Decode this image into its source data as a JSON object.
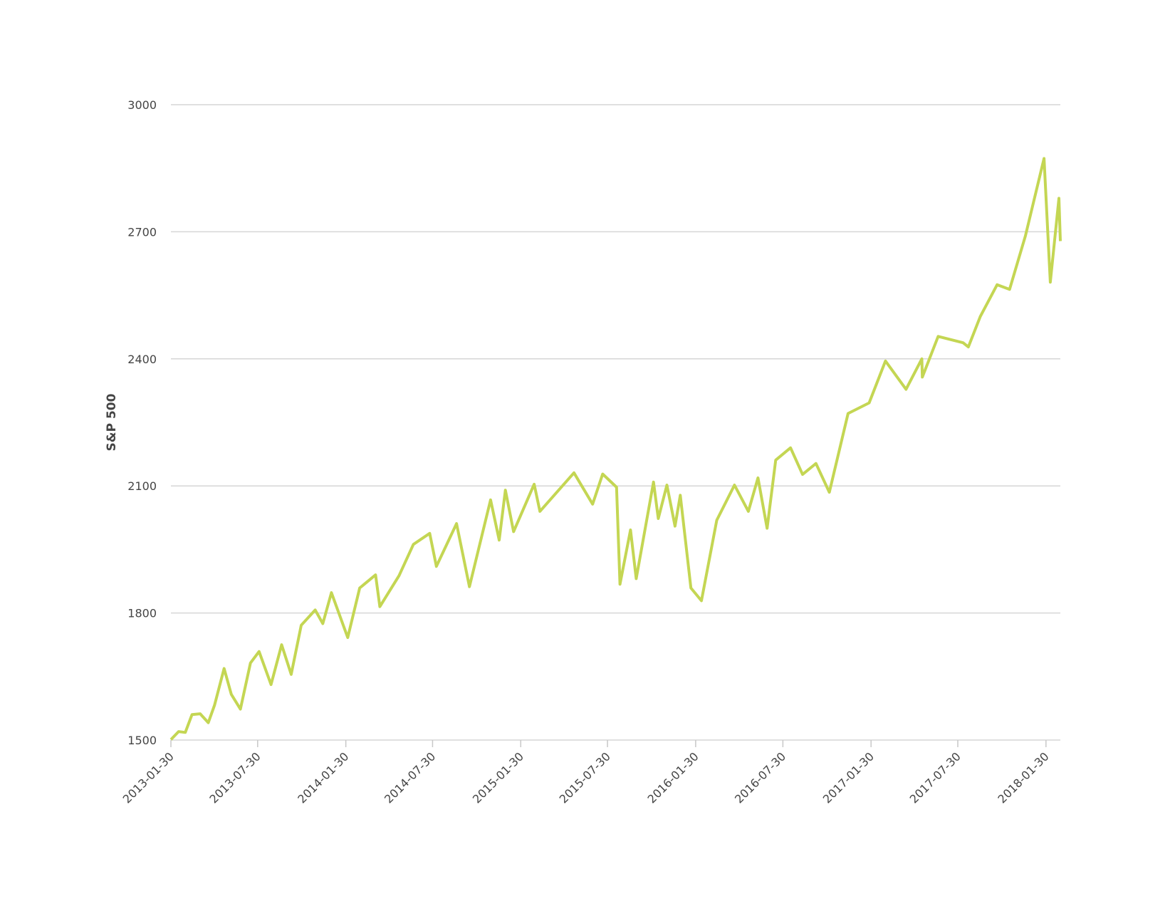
{
  "chart_data": {
    "type": "line",
    "ylabel": "S&P 500",
    "color": "#c4d653",
    "x": [
      "2013-01-30",
      "2013-02-15",
      "2013-03-01",
      "2013-03-15",
      "2013-04-01",
      "2013-04-18",
      "2013-05-01",
      "2013-05-21",
      "2013-06-05",
      "2013-06-24",
      "2013-07-15",
      "2013-08-02",
      "2013-08-27",
      "2013-09-18",
      "2013-10-08",
      "2013-10-29",
      "2013-11-27",
      "2013-12-13",
      "2013-12-31",
      "2014-02-03",
      "2014-02-28",
      "2014-04-02",
      "2014-04-11",
      "2014-05-21",
      "2014-06-20",
      "2014-07-24",
      "2014-08-07",
      "2014-09-18",
      "2014-10-15",
      "2014-11-28",
      "2014-12-16",
      "2014-12-29",
      "2015-01-15",
      "2015-02-27",
      "2015-03-11",
      "2015-05-21",
      "2015-06-29",
      "2015-07-20",
      "2015-08-18",
      "2015-08-25",
      "2015-09-16",
      "2015-09-28",
      "2015-11-03",
      "2015-11-13",
      "2015-12-01",
      "2015-12-18",
      "2015-12-29",
      "2016-01-20",
      "2016-02-11",
      "2016-03-14",
      "2016-04-20",
      "2016-05-19",
      "2016-06-08",
      "2016-06-27",
      "2016-07-15",
      "2016-08-15",
      "2016-09-09",
      "2016-10-07",
      "2016-11-04",
      "2016-12-13",
      "2017-01-26",
      "2017-03-01",
      "2017-04-13",
      "2017-05-16",
      "2017-05-17",
      "2017-06-19",
      "2017-08-10",
      "2017-08-21",
      "2017-09-15",
      "2017-10-20",
      "2017-11-15",
      "2017-12-18",
      "2018-01-26",
      "2018-02-08",
      "2018-02-26",
      "2018-03-01"
    ],
    "values": [
      1501,
      1520,
      1518,
      1560,
      1562,
      1541,
      1582,
      1669,
      1608,
      1573,
      1682,
      1709,
      1631,
      1725,
      1655,
      1771,
      1807,
      1775,
      1848,
      1742,
      1859,
      1890,
      1815,
      1888,
      1962,
      1988,
      1910,
      2011,
      1862,
      2067,
      1972,
      2090,
      1992,
      2104,
      2040,
      2131,
      2057,
      2128,
      2097,
      1868,
      1996,
      1881,
      2109,
      2023,
      2102,
      2005,
      2078,
      1859,
      1829,
      2019,
      2102,
      2040,
      2119,
      2000,
      2161,
      2190,
      2127,
      2153,
      2085,
      2271,
      2296,
      2395,
      2328,
      2400,
      2357,
      2453,
      2438,
      2428,
      2500,
      2575,
      2564,
      2690,
      2873,
      2581,
      2779,
      2678
    ],
    "xlim": [
      "2013-01-30",
      "2018-03-01"
    ],
    "xticks": [
      "2013-01-30",
      "2013-07-30",
      "2014-01-30",
      "2014-07-30",
      "2015-01-30",
      "2015-07-30",
      "2016-01-30",
      "2016-07-30",
      "2017-01-30",
      "2017-07-30",
      "2018-01-30"
    ],
    "ylim": [
      1500,
      3000
    ],
    "yticks": [
      1500,
      1800,
      2100,
      2400,
      2700,
      3000
    ],
    "grid": true
  }
}
